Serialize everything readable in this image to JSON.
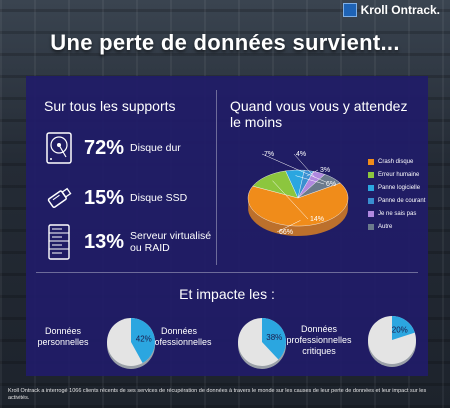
{
  "brand": {
    "name": "Kroll Ontrack."
  },
  "headline": "Une perte de données survient...",
  "supports": {
    "title": "Sur tous les supports",
    "items": [
      {
        "pct": "72%",
        "label": "Disque dur",
        "icon": "hard-drive-icon"
      },
      {
        "pct": "15%",
        "label": "Disque SSD",
        "icon": "usb-ssd-icon"
      },
      {
        "pct": "13%",
        "label_line1": "Serveur virtualisé",
        "label_line2": "ou RAID",
        "icon": "server-icon"
      }
    ]
  },
  "colors": {
    "panel": "#201c68",
    "crash": "#f08c1a",
    "humaine": "#8cc63e",
    "logicielle": "#2ba6e0",
    "courant": "#3a8fd0",
    "ne_sais_pas": "#b088e0",
    "autre": "#6b7a8c",
    "mini_fill": "#2ba6e0",
    "mini_base": "#e4e4e4"
  },
  "chart_data": [
    {
      "type": "pie",
      "title": "Quand vous vous y attendez le moins",
      "labels": [
        "Crash disque",
        "Erreur humaine",
        "Panne logicielle",
        "Panne de courant",
        "Je ne sais pas",
        "Autre"
      ],
      "values": [
        66,
        14,
        6,
        3,
        4,
        7
      ],
      "value_labels": [
        "66%",
        "14%",
        "6%",
        "3%",
        "4%",
        "7%"
      ],
      "legend": "right"
    },
    {
      "type": "pie",
      "title": "Et impacte les :",
      "charts": [
        {
          "label_line1": "Données",
          "label_line2": "personnelles",
          "value": 42,
          "value_label": "42%"
        },
        {
          "label_line1": "Données",
          "label_line2": "professionnelles",
          "value": 38,
          "value_label": "38%"
        },
        {
          "label_line1": "Données",
          "label_line2": "professionnelles",
          "label_line3": "critiques",
          "value": 20,
          "value_label": "20%"
        }
      ]
    }
  ],
  "footer": "Kroll Ontrack a interrogé 1066 clients récents de ses services de récupération de données à travers le monde sur les causes de leur perte de données et leur impact sur les activités."
}
